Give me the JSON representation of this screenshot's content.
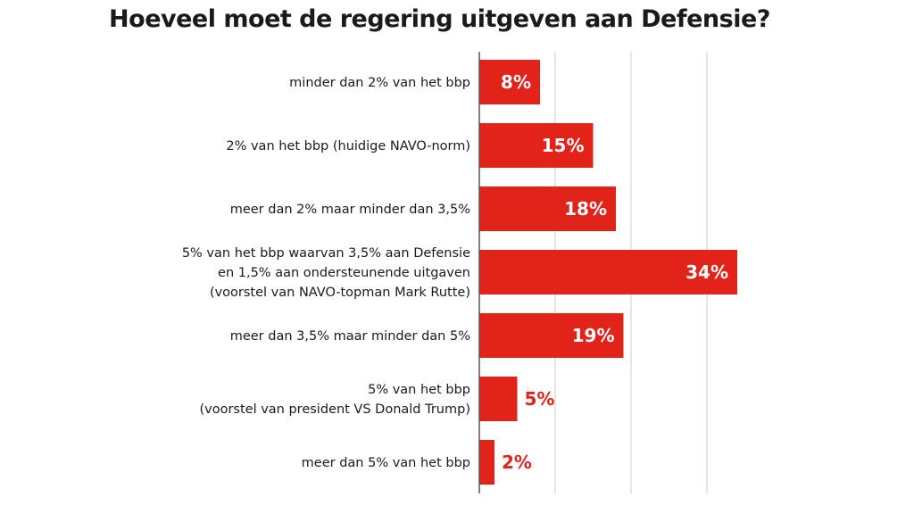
{
  "chart_data": {
    "type": "bar",
    "orientation": "horizontal",
    "title": "Hoeveel moet de regering uitgeven aan Defensie?",
    "xlabel": "",
    "ylabel": "",
    "unit": "%",
    "xlim": [
      0,
      35
    ],
    "grid": true,
    "grid_step": 10,
    "categories": [
      [
        "minder dan 2% van het bbp"
      ],
      [
        "2% van het bbp (huidige NAVO-norm)"
      ],
      [
        "meer dan 2% maar minder dan 3,5%"
      ],
      [
        "5% van het bbp waarvan 3,5% aan Defensie",
        "en 1,5% aan ondersteunende uitgaven",
        "(voorstel van NAVO-topman Mark Rutte)"
      ],
      [
        "meer dan 3,5% maar minder dan 5%"
      ],
      [
        "5% van het bbp",
        "(voorstel van president VS Donald Trump)"
      ],
      [
        "meer dan 5% van het bbp"
      ]
    ],
    "values": [
      8,
      15,
      18,
      34,
      19,
      5,
      2
    ],
    "value_labels": [
      "8%",
      "15%",
      "18%",
      "34%",
      "19%",
      "5%",
      "2%"
    ],
    "colors": {
      "bar": "#e2231a",
      "label_inside": "#ffffff",
      "label_outside": "#e2231a",
      "grid": "#dddddd",
      "axis": "#555555"
    }
  }
}
